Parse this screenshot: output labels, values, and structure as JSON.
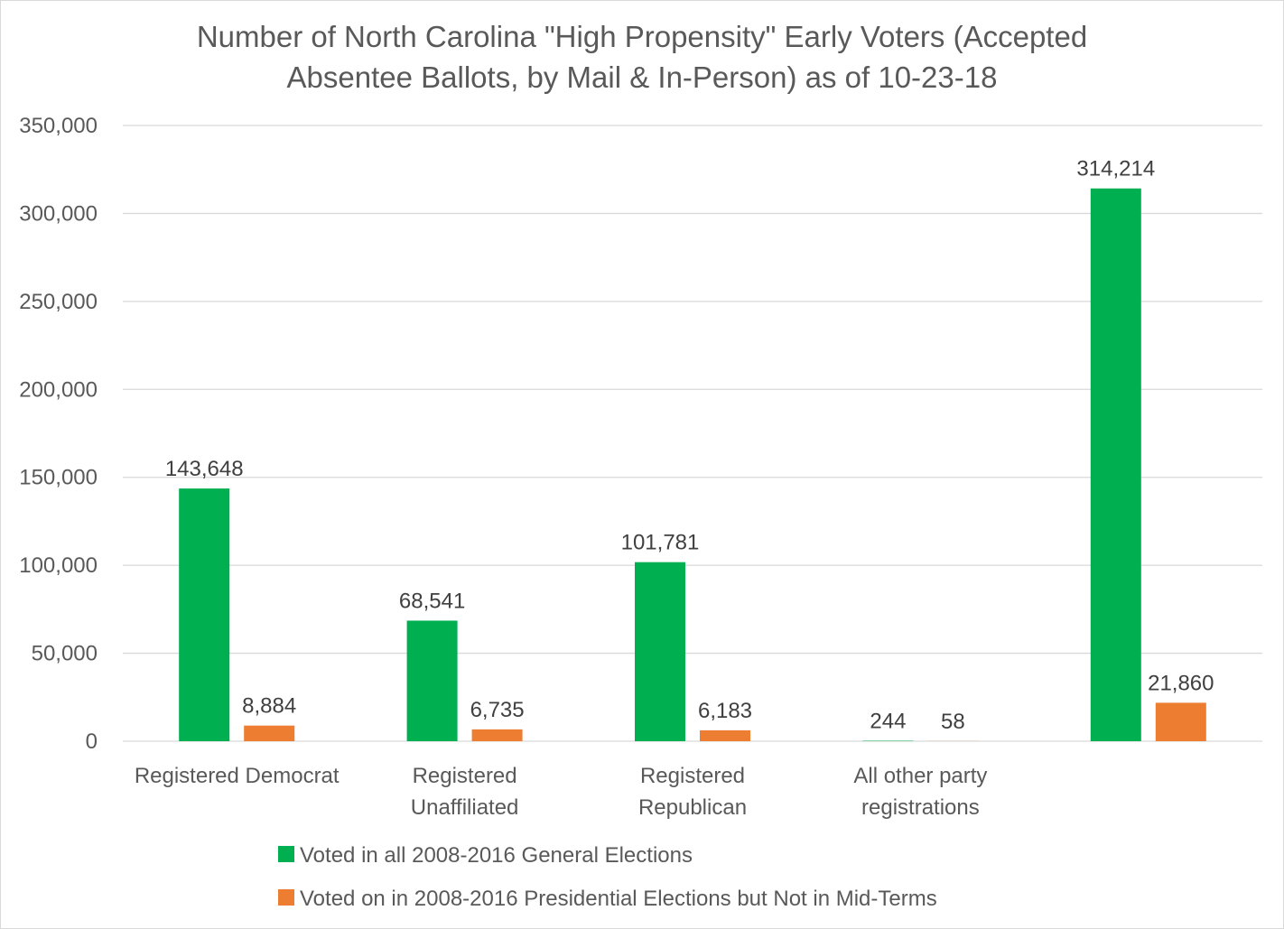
{
  "chart_data": {
    "type": "bar",
    "title": [
      "Number of North Carolina \"High Propensity\" Early Voters (Accepted",
      "Absentee Ballots, by Mail & In-Person) as of 10-23-18"
    ],
    "categories": [
      [
        "Registered Democrat"
      ],
      [
        "Registered",
        "Unaffiliated"
      ],
      [
        "Registered",
        "Republican"
      ],
      [
        "All other party",
        "registrations"
      ],
      [
        ""
      ]
    ],
    "series": [
      {
        "name": "Voted in all 2008-2016 General Elections",
        "color": "#00b050",
        "values": [
          143648,
          68541,
          101781,
          244,
          314214
        ],
        "labels": [
          "143,648",
          "68,541",
          "101,781",
          "244",
          "314,214"
        ]
      },
      {
        "name": "Voted on in 2008-2016 Presidential Elections but Not in Mid-Terms",
        "color": "#ed7d31",
        "values": [
          8884,
          6735,
          6183,
          58,
          21860
        ],
        "labels": [
          "8,884",
          "6,735",
          "6,183",
          "58",
          "21,860"
        ]
      }
    ],
    "ylim": [
      0,
      350000
    ],
    "yticks": [
      {
        "value": 0,
        "label": "0"
      },
      {
        "value": 50000,
        "label": "50,000"
      },
      {
        "value": 100000,
        "label": "100,000"
      },
      {
        "value": 150000,
        "label": "150,000"
      },
      {
        "value": 200000,
        "label": "200,000"
      },
      {
        "value": 250000,
        "label": "250,000"
      },
      {
        "value": 300000,
        "label": "300,000"
      },
      {
        "value": 350000,
        "label": "350,000"
      }
    ],
    "grid": true,
    "legend_position": "bottom"
  }
}
